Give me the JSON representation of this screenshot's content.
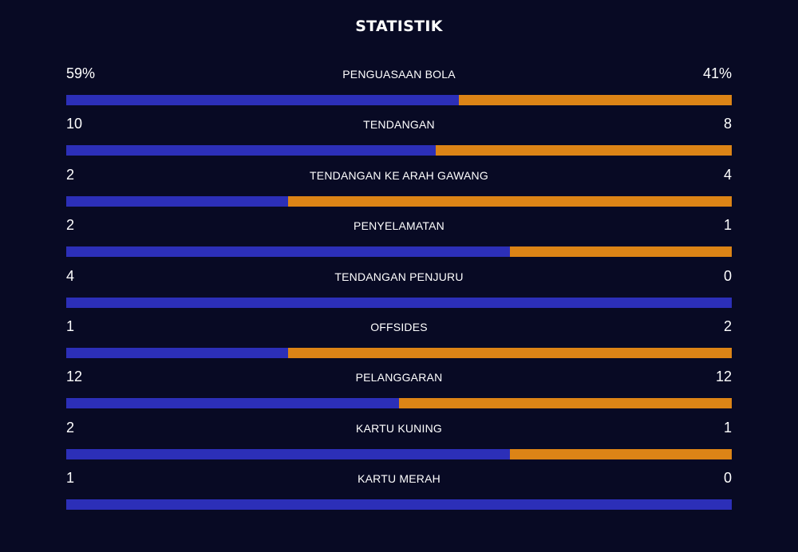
{
  "title": "STATISTIK",
  "colors": {
    "home": "#2c2fb8",
    "away": "#dc8416",
    "background": "#080a24"
  },
  "stats": [
    {
      "label": "PENGUASAAN BOLA",
      "home": "59%",
      "away": "41%",
      "home_value": 59,
      "away_value": 41
    },
    {
      "label": "TENDANGAN",
      "home": "10",
      "away": "8",
      "home_value": 10,
      "away_value": 8
    },
    {
      "label": "TENDANGAN KE ARAH GAWANG",
      "home": "2",
      "away": "4",
      "home_value": 2,
      "away_value": 4
    },
    {
      "label": "PENYELAMATAN",
      "home": "2",
      "away": "1",
      "home_value": 2,
      "away_value": 1
    },
    {
      "label": "TENDANGAN PENJURU",
      "home": "4",
      "away": "0",
      "home_value": 4,
      "away_value": 0
    },
    {
      "label": "OFFSIDES",
      "home": "1",
      "away": "2",
      "home_value": 1,
      "away_value": 2
    },
    {
      "label": "PELANGGARAN",
      "home": "12",
      "away": "12",
      "home_value": 12,
      "away_value": 12
    },
    {
      "label": "KARTU KUNING",
      "home": "2",
      "away": "1",
      "home_value": 2,
      "away_value": 1
    },
    {
      "label": "KARTU MERAH",
      "home": "1",
      "away": "0",
      "home_value": 1,
      "away_value": 0
    }
  ]
}
